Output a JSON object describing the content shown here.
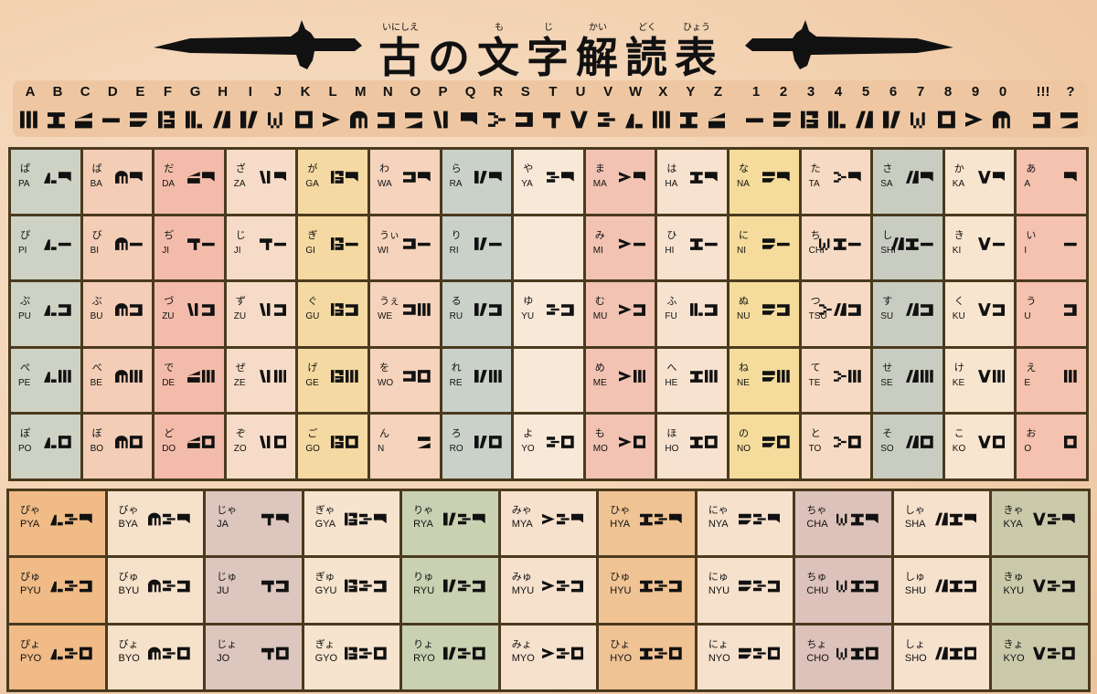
{
  "title": {
    "chars": [
      "古",
      "の",
      "文",
      "字",
      "解",
      "読",
      "表"
    ],
    "ruby": [
      "いにしえ",
      "",
      "も",
      "じ",
      "かい",
      "どく",
      "ひょう"
    ]
  },
  "cipher": {
    "letters": [
      "A",
      "B",
      "C",
      "D",
      "E",
      "F",
      "G",
      "H",
      "I",
      "J",
      "K",
      "L",
      "M",
      "N",
      "O",
      "P",
      "Q",
      "R",
      "S",
      "T",
      "U",
      "V",
      "W",
      "X",
      "Y",
      "Z"
    ],
    "digits": [
      "1",
      "2",
      "3",
      "4",
      "5",
      "6",
      "7",
      "8",
      "9",
      "0"
    ],
    "symbols": [
      "!!!",
      "?"
    ]
  },
  "colors": {
    "border": "#4a3a1e",
    "band": "#eec7a2",
    "glyph": "#111111"
  },
  "main": {
    "column_colors": [
      "#cdd2c4",
      "#f3cdb6",
      "#f3bcaa",
      "#f6dcc8",
      "#f5d9a2",
      "#f6d3bc",
      "#c9d1c9",
      "#f8e8d8",
      "#f2c3b2",
      "#f7e2cf",
      "#f5dc9c",
      "#f7dac3",
      "#c9cdc1",
      "#f7e5cf",
      "#f4c2ae"
    ],
    "rows": [
      [
        {
          "kana": "ぱ",
          "romaji": "PA",
          "glyph": [
            "p",
            "a"
          ]
        },
        {
          "kana": "ば",
          "romaji": "BA",
          "glyph": [
            "b",
            "a"
          ]
        },
        {
          "kana": "だ",
          "romaji": "DA",
          "glyph": [
            "d",
            "a"
          ]
        },
        {
          "kana": "ざ",
          "romaji": "ZA",
          "glyph": [
            "z",
            "a"
          ]
        },
        {
          "kana": "が",
          "romaji": "GA",
          "glyph": [
            "g",
            "a"
          ]
        },
        {
          "kana": "わ",
          "romaji": "WA",
          "glyph": [
            "w",
            "a"
          ]
        },
        {
          "kana": "ら",
          "romaji": "RA",
          "glyph": [
            "r",
            "a"
          ]
        },
        {
          "kana": "や",
          "romaji": "YA",
          "glyph": [
            "y",
            "a"
          ]
        },
        {
          "kana": "ま",
          "romaji": "MA",
          "glyph": [
            "m",
            "a"
          ]
        },
        {
          "kana": "は",
          "romaji": "HA",
          "glyph": [
            "h",
            "a"
          ]
        },
        {
          "kana": "な",
          "romaji": "NA",
          "glyph": [
            "n",
            "a"
          ]
        },
        {
          "kana": "た",
          "romaji": "TA",
          "glyph": [
            "t",
            "a"
          ]
        },
        {
          "kana": "さ",
          "romaji": "SA",
          "glyph": [
            "s",
            "a"
          ]
        },
        {
          "kana": "か",
          "romaji": "KA",
          "glyph": [
            "k",
            "a"
          ]
        },
        {
          "kana": "あ",
          "romaji": "A",
          "glyph": [
            "a"
          ]
        }
      ],
      [
        {
          "kana": "ぴ",
          "romaji": "PI",
          "glyph": [
            "p",
            "i"
          ]
        },
        {
          "kana": "び",
          "romaji": "BI",
          "glyph": [
            "b",
            "i"
          ]
        },
        {
          "kana": "ぢ",
          "romaji": "JI",
          "glyph": [
            "j",
            "i"
          ]
        },
        {
          "kana": "じ",
          "romaji": "JI",
          "glyph": [
            "j",
            "i"
          ]
        },
        {
          "kana": "ぎ",
          "romaji": "GI",
          "glyph": [
            "g",
            "i"
          ]
        },
        {
          "kana": "うぃ",
          "romaji": "WI",
          "glyph": [
            "w",
            "i"
          ]
        },
        {
          "kana": "り",
          "romaji": "RI",
          "glyph": [
            "r",
            "i"
          ]
        },
        null,
        {
          "kana": "み",
          "romaji": "MI",
          "glyph": [
            "m",
            "i"
          ]
        },
        {
          "kana": "ひ",
          "romaji": "HI",
          "glyph": [
            "h",
            "i"
          ]
        },
        {
          "kana": "に",
          "romaji": "NI",
          "glyph": [
            "n",
            "i"
          ]
        },
        {
          "kana": "ち",
          "romaji": "CHI",
          "glyph": [
            "ch",
            "h",
            "i"
          ]
        },
        {
          "kana": "し",
          "romaji": "SHI",
          "glyph": [
            "s",
            "h",
            "i"
          ]
        },
        {
          "kana": "き",
          "romaji": "KI",
          "glyph": [
            "k",
            "i"
          ]
        },
        {
          "kana": "い",
          "romaji": "I",
          "glyph": [
            "i"
          ]
        }
      ],
      [
        {
          "kana": "ぷ",
          "romaji": "PU",
          "glyph": [
            "p",
            "u"
          ]
        },
        {
          "kana": "ぶ",
          "romaji": "BU",
          "glyph": [
            "b",
            "u"
          ]
        },
        {
          "kana": "づ",
          "romaji": "ZU",
          "glyph": [
            "z",
            "u"
          ]
        },
        {
          "kana": "ず",
          "romaji": "ZU",
          "glyph": [
            "z",
            "u"
          ]
        },
        {
          "kana": "ぐ",
          "romaji": "GU",
          "glyph": [
            "g",
            "u"
          ]
        },
        {
          "kana": "うぇ",
          "romaji": "WE",
          "glyph": [
            "w",
            "e"
          ]
        },
        {
          "kana": "る",
          "romaji": "RU",
          "glyph": [
            "r",
            "u"
          ]
        },
        {
          "kana": "ゆ",
          "romaji": "YU",
          "glyph": [
            "y",
            "u"
          ]
        },
        {
          "kana": "む",
          "romaji": "MU",
          "glyph": [
            "m",
            "u"
          ]
        },
        {
          "kana": "ふ",
          "romaji": "FU",
          "glyph": [
            "f",
            "u"
          ]
        },
        {
          "kana": "ぬ",
          "romaji": "NU",
          "glyph": [
            "n",
            "u"
          ]
        },
        {
          "kana": "つ",
          "romaji": "TSU",
          "glyph": [
            "t",
            "s",
            "u"
          ]
        },
        {
          "kana": "す",
          "romaji": "SU",
          "glyph": [
            "s",
            "u"
          ]
        },
        {
          "kana": "く",
          "romaji": "KU",
          "glyph": [
            "k",
            "u"
          ]
        },
        {
          "kana": "う",
          "romaji": "U",
          "glyph": [
            "u"
          ]
        }
      ],
      [
        {
          "kana": "ぺ",
          "romaji": "PE",
          "glyph": [
            "p",
            "e"
          ]
        },
        {
          "kana": "べ",
          "romaji": "BE",
          "glyph": [
            "b",
            "e"
          ]
        },
        {
          "kana": "で",
          "romaji": "DE",
          "glyph": [
            "d",
            "e"
          ]
        },
        {
          "kana": "ぜ",
          "romaji": "ZE",
          "glyph": [
            "z",
            "e"
          ]
        },
        {
          "kana": "げ",
          "romaji": "GE",
          "glyph": [
            "g",
            "e"
          ]
        },
        {
          "kana": "を",
          "romaji": "WO",
          "glyph": [
            "w",
            "o"
          ]
        },
        {
          "kana": "れ",
          "romaji": "RE",
          "glyph": [
            "r",
            "e"
          ]
        },
        null,
        {
          "kana": "め",
          "romaji": "ME",
          "glyph": [
            "m",
            "e"
          ]
        },
        {
          "kana": "へ",
          "romaji": "HE",
          "glyph": [
            "h",
            "e"
          ]
        },
        {
          "kana": "ね",
          "romaji": "NE",
          "glyph": [
            "n",
            "e"
          ]
        },
        {
          "kana": "て",
          "romaji": "TE",
          "glyph": [
            "t",
            "e"
          ]
        },
        {
          "kana": "せ",
          "romaji": "SE",
          "glyph": [
            "s",
            "e"
          ]
        },
        {
          "kana": "け",
          "romaji": "KE",
          "glyph": [
            "k",
            "e"
          ]
        },
        {
          "kana": "え",
          "romaji": "E",
          "glyph": [
            "e"
          ]
        }
      ],
      [
        {
          "kana": "ぽ",
          "romaji": "PO",
          "glyph": [
            "p",
            "o"
          ]
        },
        {
          "kana": "ぼ",
          "romaji": "BO",
          "glyph": [
            "b",
            "o"
          ]
        },
        {
          "kana": "ど",
          "romaji": "DO",
          "glyph": [
            "d",
            "o"
          ]
        },
        {
          "kana": "ぞ",
          "romaji": "ZO",
          "glyph": [
            "z",
            "o"
          ]
        },
        {
          "kana": "ご",
          "romaji": "GO",
          "glyph": [
            "g",
            "o"
          ]
        },
        {
          "kana": "ん",
          "romaji": "N",
          "glyph": [
            "nn"
          ]
        },
        {
          "kana": "ろ",
          "romaji": "RO",
          "glyph": [
            "r",
            "o"
          ]
        },
        {
          "kana": "よ",
          "romaji": "YO",
          "glyph": [
            "y",
            "o"
          ]
        },
        {
          "kana": "も",
          "romaji": "MO",
          "glyph": [
            "m",
            "o"
          ]
        },
        {
          "kana": "ほ",
          "romaji": "HO",
          "glyph": [
            "h",
            "o"
          ]
        },
        {
          "kana": "の",
          "romaji": "NO",
          "glyph": [
            "n",
            "o"
          ]
        },
        {
          "kana": "と",
          "romaji": "TO",
          "glyph": [
            "t",
            "o"
          ]
        },
        {
          "kana": "そ",
          "romaji": "SO",
          "glyph": [
            "s",
            "o"
          ]
        },
        {
          "kana": "こ",
          "romaji": "KO",
          "glyph": [
            "k",
            "o"
          ]
        },
        {
          "kana": "お",
          "romaji": "O",
          "glyph": [
            "o"
          ]
        }
      ]
    ]
  },
  "lower": {
    "column_colors": [
      "#f0bb86",
      "#f6e1ca",
      "#dcc6be",
      "#f6e4ce",
      "#c9d1b2",
      "#f6e1cd",
      "#f0c394",
      "#f6e1cd",
      "#dcc2ba",
      "#f6e1cd",
      "#cacaab"
    ],
    "rows": [
      [
        {
          "kana": "ぴゃ",
          "romaji": "PYA",
          "glyph": [
            "p",
            "y",
            "a"
          ]
        },
        {
          "kana": "びゃ",
          "romaji": "BYA",
          "glyph": [
            "b",
            "y",
            "a"
          ]
        },
        {
          "kana": "じゃ",
          "romaji": "JA",
          "glyph": [
            "j",
            "a"
          ]
        },
        {
          "kana": "ぎゃ",
          "romaji": "GYA",
          "glyph": [
            "g",
            "y",
            "a"
          ]
        },
        {
          "kana": "りゃ",
          "romaji": "RYA",
          "glyph": [
            "r",
            "y",
            "a"
          ]
        },
        {
          "kana": "みゃ",
          "romaji": "MYA",
          "glyph": [
            "m",
            "y",
            "a"
          ]
        },
        {
          "kana": "ひゃ",
          "romaji": "HYA",
          "glyph": [
            "h",
            "y",
            "a"
          ]
        },
        {
          "kana": "にゃ",
          "romaji": "NYA",
          "glyph": [
            "n",
            "y",
            "a"
          ]
        },
        {
          "kana": "ちゃ",
          "romaji": "CHA",
          "glyph": [
            "ch",
            "h",
            "a"
          ]
        },
        {
          "kana": "しゃ",
          "romaji": "SHA",
          "glyph": [
            "s",
            "h",
            "a"
          ]
        },
        {
          "kana": "きゃ",
          "romaji": "KYA",
          "glyph": [
            "k",
            "y",
            "a"
          ]
        }
      ],
      [
        {
          "kana": "ぴゅ",
          "romaji": "PYU",
          "glyph": [
            "p",
            "y",
            "u"
          ]
        },
        {
          "kana": "びゅ",
          "romaji": "BYU",
          "glyph": [
            "b",
            "y",
            "u"
          ]
        },
        {
          "kana": "じゅ",
          "romaji": "JU",
          "glyph": [
            "j",
            "u"
          ]
        },
        {
          "kana": "ぎゅ",
          "romaji": "GYU",
          "glyph": [
            "g",
            "y",
            "u"
          ]
        },
        {
          "kana": "りゅ",
          "romaji": "RYU",
          "glyph": [
            "r",
            "y",
            "u"
          ]
        },
        {
          "kana": "みゅ",
          "romaji": "MYU",
          "glyph": [
            "m",
            "y",
            "u"
          ]
        },
        {
          "kana": "ひゅ",
          "romaji": "HYU",
          "glyph": [
            "h",
            "y",
            "u"
          ]
        },
        {
          "kana": "にゅ",
          "romaji": "NYU",
          "glyph": [
            "n",
            "y",
            "u"
          ]
        },
        {
          "kana": "ちゅ",
          "romaji": "CHU",
          "glyph": [
            "ch",
            "h",
            "u"
          ]
        },
        {
          "kana": "しゅ",
          "romaji": "SHU",
          "glyph": [
            "s",
            "h",
            "u"
          ]
        },
        {
          "kana": "きゅ",
          "romaji": "KYU",
          "glyph": [
            "k",
            "y",
            "u"
          ]
        }
      ],
      [
        {
          "kana": "ぴょ",
          "romaji": "PYO",
          "glyph": [
            "p",
            "y",
            "o"
          ]
        },
        {
          "kana": "びょ",
          "romaji": "BYO",
          "glyph": [
            "b",
            "y",
            "o"
          ]
        },
        {
          "kana": "じょ",
          "romaji": "JO",
          "glyph": [
            "j",
            "o"
          ]
        },
        {
          "kana": "ぎょ",
          "romaji": "GYO",
          "glyph": [
            "g",
            "y",
            "o"
          ]
        },
        {
          "kana": "りょ",
          "romaji": "RYO",
          "glyph": [
            "r",
            "y",
            "o"
          ]
        },
        {
          "kana": "みょ",
          "romaji": "MYO",
          "glyph": [
            "m",
            "y",
            "o"
          ]
        },
        {
          "kana": "ひょ",
          "romaji": "HYO",
          "glyph": [
            "h",
            "y",
            "o"
          ]
        },
        {
          "kana": "にょ",
          "romaji": "NYO",
          "glyph": [
            "n",
            "y",
            "o"
          ]
        },
        {
          "kana": "ちょ",
          "romaji": "CHO",
          "glyph": [
            "ch",
            "h",
            "o"
          ]
        },
        {
          "kana": "しょ",
          "romaji": "SHO",
          "glyph": [
            "s",
            "h",
            "o"
          ]
        },
        {
          "kana": "きょ",
          "romaji": "KYO",
          "glyph": [
            "k",
            "y",
            "o"
          ]
        }
      ]
    ]
  }
}
